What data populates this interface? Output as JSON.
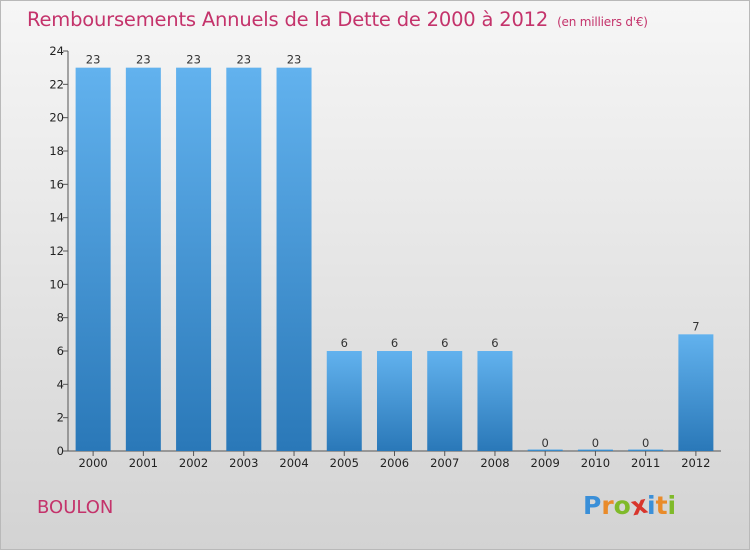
{
  "header": {
    "title": "Remboursements Annuels de la Dette de 2000 à 2012",
    "unit": "(en milliers d'€)"
  },
  "footer": {
    "commune": "BOULON",
    "logo_letters": [
      {
        "char": "P",
        "color": "#3a8fd8"
      },
      {
        "char": "r",
        "color": "#e98b2a"
      },
      {
        "char": "o",
        "color": "#7fba2a"
      },
      {
        "char": "x",
        "color": "#d8352c"
      },
      {
        "char": "i",
        "color": "#3a8fd8"
      },
      {
        "char": "t",
        "color": "#e98b2a"
      },
      {
        "char": "i",
        "color": "#7fba2a"
      }
    ]
  },
  "chart_data": {
    "type": "bar",
    "categories": [
      "2000",
      "2001",
      "2002",
      "2003",
      "2004",
      "2005",
      "2006",
      "2007",
      "2008",
      "2009",
      "2010",
      "2011",
      "2012"
    ],
    "values": [
      23,
      23,
      23,
      23,
      23,
      6,
      6,
      6,
      6,
      0,
      0,
      0,
      7
    ],
    "ylim": [
      0,
      24
    ],
    "yticks": [
      0,
      2,
      4,
      6,
      8,
      10,
      12,
      14,
      16,
      18,
      20,
      22,
      24
    ],
    "grid": false,
    "bar_color_top": "#62b2ee",
    "bar_color_bottom": "#2a78b8"
  }
}
